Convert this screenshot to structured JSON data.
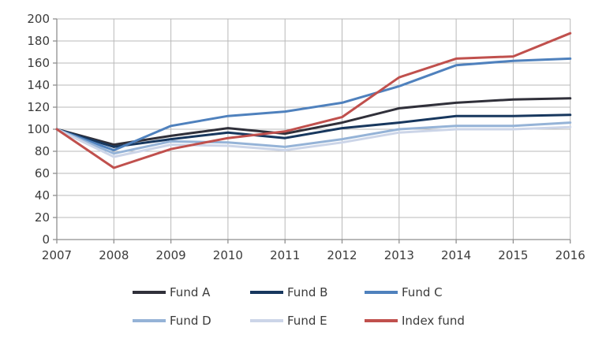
{
  "chart_data": {
    "type": "line",
    "title": "",
    "xlabel": "",
    "ylabel": "",
    "x": [
      2007,
      2008,
      2009,
      2010,
      2011,
      2012,
      2013,
      2014,
      2015,
      2016
    ],
    "x_tick_labels": [
      "2007",
      "2008",
      "2009",
      "2010",
      "2011",
      "2012",
      "2013",
      "2014",
      "2015",
      "2016"
    ],
    "y_ticks": [
      0,
      20,
      40,
      60,
      80,
      100,
      120,
      140,
      160,
      180,
      200
    ],
    "ylim": [
      0,
      200
    ],
    "grid": true,
    "legend_position": "bottom",
    "series": [
      {
        "name": "Fund A",
        "color": "#30303a",
        "values": [
          100,
          86,
          94,
          101,
          96,
          106,
          119,
          124,
          127,
          128
        ]
      },
      {
        "name": "Fund B",
        "color": "#17375e",
        "values": [
          100,
          84,
          91,
          97,
          92,
          101,
          106,
          112,
          112,
          113
        ]
      },
      {
        "name": "Fund C",
        "color": "#4f81bd",
        "values": [
          100,
          81,
          103,
          112,
          116,
          124,
          139,
          158,
          162,
          164
        ]
      },
      {
        "name": "Fund D",
        "color": "#95b3d7",
        "values": [
          100,
          78,
          89,
          88,
          84,
          91,
          100,
          103,
          103,
          106
        ]
      },
      {
        "name": "Fund E",
        "color": "#ccd5e8",
        "values": [
          100,
          75,
          86,
          85,
          81,
          88,
          97,
          100,
          100,
          102
        ]
      },
      {
        "name": "Index fund",
        "color": "#c0504d",
        "values": [
          100,
          65,
          82,
          92,
          98,
          111,
          147,
          164,
          166,
          187
        ]
      }
    ]
  },
  "colors": {
    "grid": "#b9b9b9",
    "axis": "#8f8f8f",
    "tick": "#8f8f8f",
    "text": "#3b3b3b",
    "background": "#ffffff"
  }
}
